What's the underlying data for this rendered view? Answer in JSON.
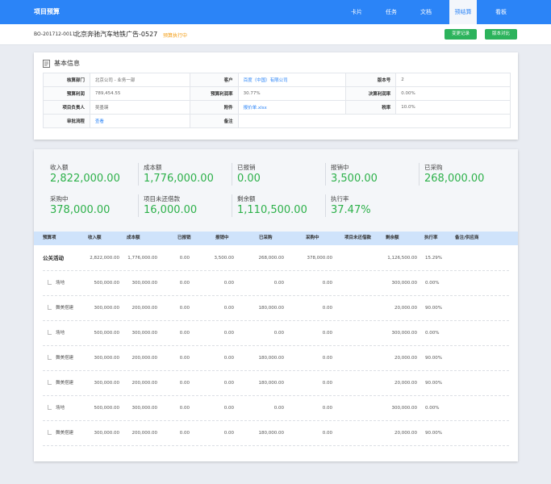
{
  "app": {
    "title": "项目预算"
  },
  "nav": {
    "items": [
      {
        "label": "卡片"
      },
      {
        "label": "任务"
      },
      {
        "label": "文档"
      },
      {
        "label": "预结算",
        "active": true
      },
      {
        "label": "看板"
      }
    ]
  },
  "project": {
    "code": "BO-201712-0011",
    "name": "北京奔驰汽车地铁广告-0527",
    "status": "预算执行中",
    "change_log_label": "变更记录",
    "version_compare_label": "版本对比"
  },
  "basic_info": {
    "title": "基本信息",
    "rows": [
      [
        {
          "label": "核算部门",
          "value": "北京公司 - 业务一部"
        },
        {
          "label": "客户",
          "value": "百度（中国）有限公司",
          "link": true
        },
        {
          "label": "版本号",
          "value": "2"
        }
      ],
      [
        {
          "label": "预算利润",
          "value": "789,454.55"
        },
        {
          "label": "预算利润率",
          "value": "30.77%"
        },
        {
          "label": "决算利润率",
          "value": "0.00%"
        }
      ],
      [
        {
          "label": "项目负责人",
          "value": "吴墨瑛"
        },
        {
          "label": "附件",
          "value": "报价单.xlsx",
          "link": true
        },
        {
          "label": "税率",
          "value": "10.0%"
        }
      ],
      [
        {
          "label": "审批流程",
          "value": "查看",
          "link": true
        },
        {
          "label": "备注",
          "value": ""
        }
      ]
    ]
  },
  "stats": [
    {
      "label": "收入额",
      "value": "2,822,000.00"
    },
    {
      "label": "成本额",
      "value": "1,776,000.00"
    },
    {
      "label": "已报销",
      "value": "0.00"
    },
    {
      "label": "报销中",
      "value": "3,500.00"
    },
    {
      "label": "已采购",
      "value": "268,000.00"
    },
    {
      "label": "采购中",
      "value": "378,000.00"
    },
    {
      "label": "项目未还借款",
      "value": "16,000.00"
    },
    {
      "label": "剩余额",
      "value": "1,110,500.00"
    },
    {
      "label": "执行率",
      "value": "37.47%"
    }
  ],
  "budget_table": {
    "headers": [
      "预算项",
      "收入额",
      "成本额",
      "已报销",
      "报销中",
      "已采购",
      "采购中",
      "项目未还借款",
      "剩余额",
      "执行率",
      "备注/供应商"
    ],
    "rows": [
      {
        "name": "公关活动",
        "parent": true,
        "cells": [
          "2,822,000.00",
          "1,776,000.00",
          "0.00",
          "3,500.00",
          "268,000.00",
          "378,000.00",
          "",
          "1,126,500.00",
          "15.29%",
          ""
        ]
      },
      {
        "name": "场地",
        "parent": false,
        "cells": [
          "500,000.00",
          "300,000.00",
          "0.00",
          "0.00",
          "0.00",
          "0.00",
          "",
          "300,000.00",
          "0.00%",
          ""
        ]
      },
      {
        "name": "舞美搭建",
        "parent": false,
        "cells": [
          "300,000.00",
          "200,000.00",
          "0.00",
          "0.00",
          "180,000.00",
          "0.00",
          "",
          "20,000.00",
          "90.00%",
          ""
        ]
      },
      {
        "name": "场地",
        "parent": false,
        "cells": [
          "500,000.00",
          "300,000.00",
          "0.00",
          "0.00",
          "0.00",
          "0.00",
          "",
          "300,000.00",
          "0.00%",
          ""
        ]
      },
      {
        "name": "舞美搭建",
        "parent": false,
        "cells": [
          "300,000.00",
          "200,000.00",
          "0.00",
          "0.00",
          "180,000.00",
          "0.00",
          "",
          "20,000.00",
          "90.00%",
          ""
        ]
      },
      {
        "name": "舞美搭建",
        "parent": false,
        "cells": [
          "300,000.00",
          "200,000.00",
          "0.00",
          "0.00",
          "180,000.00",
          "0.00",
          "",
          "20,000.00",
          "90.00%",
          ""
        ]
      },
      {
        "name": "场地",
        "parent": false,
        "cells": [
          "500,000.00",
          "300,000.00",
          "0.00",
          "0.00",
          "0.00",
          "0.00",
          "",
          "300,000.00",
          "0.00%",
          ""
        ]
      },
      {
        "name": "舞美搭建",
        "parent": false,
        "cells": [
          "300,000.00",
          "200,000.00",
          "0.00",
          "0.00",
          "180,000.00",
          "0.00",
          "",
          "20,000.00",
          "90.00%",
          ""
        ]
      }
    ]
  },
  "colors": {
    "primary": "#2b84f7",
    "success": "#2cb35c",
    "stat_value": "#2db14a",
    "warning": "#f39c12"
  }
}
